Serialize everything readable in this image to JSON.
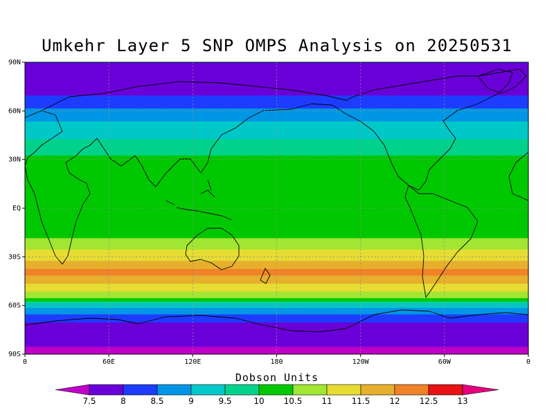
{
  "title": "Umkehr Layer 5 SNP OMPS Analysis on 20250531",
  "lat_ticks": [
    "90N",
    "60N",
    "30N",
    "EQ",
    "30S",
    "60S",
    "90S"
  ],
  "lon_ticks": [
    "0",
    "60E",
    "120E",
    "180",
    "120W",
    "60W",
    "0"
  ],
  "colorbar": {
    "title": "Dobson Units",
    "labels": [
      "7.5",
      "8",
      "8.5",
      "9",
      "9.5",
      "10",
      "10.5",
      "11",
      "11.5",
      "12",
      "12.5",
      "13"
    ],
    "colors": [
      "#c000c8",
      "#6a00d8",
      "#1e3cff",
      "#0096e6",
      "#00c8c8",
      "#00d28c",
      "#00c800",
      "#a0e632",
      "#e6dc32",
      "#e6af2d",
      "#f08228",
      "#e61414",
      "#e6007d"
    ]
  },
  "chart_data": {
    "type": "heatmap",
    "title": "Umkehr Layer 5 SNP OMPS Analysis on 20250531",
    "units": "Dobson Units",
    "lat_range": [
      -90,
      90
    ],
    "lon_range": [
      0,
      360
    ],
    "lat": [
      90,
      75,
      60,
      50,
      40,
      30,
      20,
      10,
      0,
      -10,
      -20,
      -30,
      -40,
      -45,
      -55,
      -60,
      -70,
      -80,
      -90
    ],
    "value_by_lat": [
      8.0,
      7.6,
      8.6,
      9.2,
      9.6,
      10.1,
      10.4,
      10.3,
      10.2,
      10.0,
      10.6,
      11.3,
      12.2,
      11.6,
      10.6,
      9.2,
      8.0,
      7.6,
      7.4
    ],
    "grid": true
  }
}
